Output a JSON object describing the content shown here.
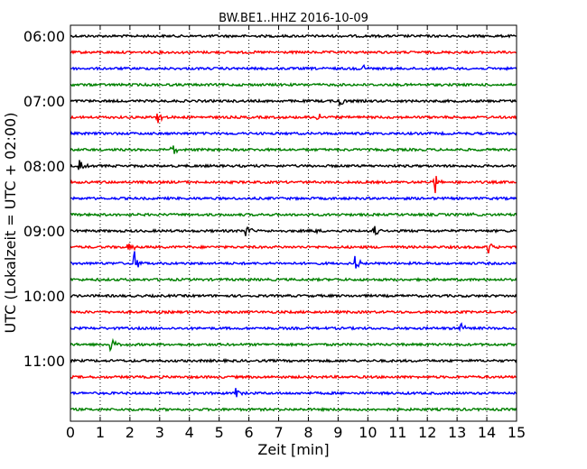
{
  "chart_data": {
    "type": "line",
    "title": "BW.BE1..HHZ 2016-10-09",
    "xlabel": "Zeit  [min]",
    "ylabel": "UTC (Lokalzeit = UTC + 02:00)",
    "xlim": [
      0,
      15
    ],
    "x_ticks": [
      "0",
      "1",
      "2",
      "3",
      "4",
      "5",
      "6",
      "7",
      "8",
      "9",
      "10",
      "11",
      "12",
      "13",
      "14",
      "15"
    ],
    "y_tick_labels": [
      "06:00",
      "07:00",
      "08:00",
      "09:00",
      "10:00",
      "11:00"
    ],
    "grid": "vertical dotted",
    "trace_start_times": [
      "06:00",
      "06:15",
      "06:30",
      "06:45",
      "07:00",
      "07:15",
      "07:30",
      "07:45",
      "08:00",
      "08:15",
      "08:30",
      "08:45",
      "09:00",
      "09:15",
      "09:30",
      "09:45",
      "10:00",
      "10:15",
      "10:30",
      "10:45",
      "11:00",
      "11:15",
      "11:30",
      "11:45"
    ],
    "trace_colors": [
      "#000000",
      "#ff0000",
      "#0000ff",
      "#008000"
    ],
    "events": [
      {
        "trace": 2,
        "minute": 9.85,
        "amplitude": 0.4
      },
      {
        "trace": 4,
        "minute": 9.05,
        "amplitude": 0.55
      },
      {
        "trace": 5,
        "minute": 2.9,
        "amplitude": 0.55
      },
      {
        "trace": 5,
        "minute": 8.3,
        "amplitude": 0.55
      },
      {
        "trace": 7,
        "minute": 3.4,
        "amplitude": 0.7
      },
      {
        "trace": 8,
        "minute": 0.3,
        "amplitude": 0.55
      },
      {
        "trace": 9,
        "minute": 12.25,
        "amplitude": 1.0
      },
      {
        "trace": 11,
        "minute": 13.5,
        "amplitude": 0.15
      },
      {
        "trace": 12,
        "minute": 5.9,
        "amplitude": 0.7
      },
      {
        "trace": 12,
        "minute": 8.2,
        "amplitude": 0.15
      },
      {
        "trace": 12,
        "minute": 10.2,
        "amplitude": 0.55
      },
      {
        "trace": 13,
        "minute": 1.95,
        "amplitude": 0.55
      },
      {
        "trace": 13,
        "minute": 14.05,
        "amplitude": 0.7
      },
      {
        "trace": 14,
        "minute": 2.15,
        "amplitude": 0.9
      },
      {
        "trace": 14,
        "minute": 9.55,
        "amplitude": 0.7
      },
      {
        "trace": 18,
        "minute": 13.05,
        "amplitude": 0.9
      },
      {
        "trace": 19,
        "minute": 1.35,
        "amplitude": 0.75
      },
      {
        "trace": 22,
        "minute": 5.55,
        "amplitude": 0.5
      }
    ]
  }
}
